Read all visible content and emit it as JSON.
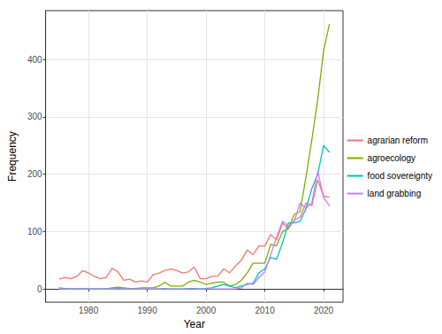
{
  "chart_data": {
    "type": "line",
    "x_label": "Year",
    "y_label": "Frequency",
    "x": [
      1975,
      1976,
      1977,
      1978,
      1979,
      1980,
      1981,
      1982,
      1983,
      1984,
      1985,
      1986,
      1987,
      1988,
      1989,
      1990,
      1991,
      1992,
      1993,
      1994,
      1995,
      1996,
      1997,
      1998,
      1999,
      2000,
      2001,
      2002,
      2003,
      2004,
      2005,
      2006,
      2007,
      2008,
      2009,
      2010,
      2011,
      2012,
      2013,
      2014,
      2015,
      2016,
      2017,
      2018,
      2019,
      2020,
      2021
    ],
    "series": [
      {
        "name": "agrarian reform",
        "color": "#F8766D",
        "values": [
          17,
          20,
          18,
          22,
          32,
          28,
          22,
          18,
          20,
          36,
          30,
          15,
          17,
          12,
          14,
          12,
          25,
          28,
          32,
          35,
          32,
          28,
          30,
          38,
          18,
          18,
          22,
          22,
          35,
          28,
          40,
          50,
          68,
          60,
          75,
          75,
          95,
          85,
          115,
          105,
          120,
          125,
          150,
          145,
          190,
          162,
          160
        ]
      },
      {
        "name": "agroecology",
        "color": "#7CAE00",
        "values": [
          0,
          0,
          0,
          0,
          0,
          0,
          0,
          0,
          0,
          2,
          3,
          2,
          1,
          1,
          2,
          2,
          2,
          5,
          12,
          5,
          5,
          5,
          12,
          15,
          12,
          8,
          10,
          12,
          12,
          5,
          8,
          15,
          28,
          45,
          45,
          45,
          78,
          75,
          100,
          105,
          130,
          135,
          195,
          260,
          330,
          415,
          462
        ]
      },
      {
        "name": "food sovereignty",
        "color": "#00BFC4",
        "values": [
          2,
          1,
          0,
          0,
          1,
          0,
          0,
          0,
          0,
          0,
          1,
          0,
          0,
          0,
          0,
          0,
          0,
          0,
          1,
          0,
          0,
          0,
          1,
          1,
          0,
          1,
          2,
          5,
          8,
          5,
          2,
          5,
          8,
          10,
          28,
          35,
          55,
          52,
          80,
          115,
          115,
          118,
          140,
          175,
          200,
          250,
          238
        ]
      },
      {
        "name": "land grabbing",
        "color": "#C77CFF",
        "values": [
          0,
          0,
          0,
          0,
          0,
          0,
          0,
          0,
          0,
          0,
          0,
          0,
          0,
          0,
          0,
          0,
          0,
          0,
          0,
          0,
          0,
          0,
          0,
          0,
          0,
          0,
          0,
          0,
          0,
          0,
          0,
          2,
          10,
          8,
          20,
          30,
          60,
          90,
          118,
          110,
          118,
          150,
          140,
          150,
          205,
          160,
          145
        ]
      }
    ],
    "xlim": [
      1972.7,
      2023.3
    ],
    "xticks": [
      1980,
      1990,
      2000,
      2010,
      2020
    ],
    "ylim": [
      -23,
      485
    ],
    "yticks": [
      0,
      100,
      200,
      300,
      400
    ],
    "grid": true,
    "legend": "right"
  }
}
